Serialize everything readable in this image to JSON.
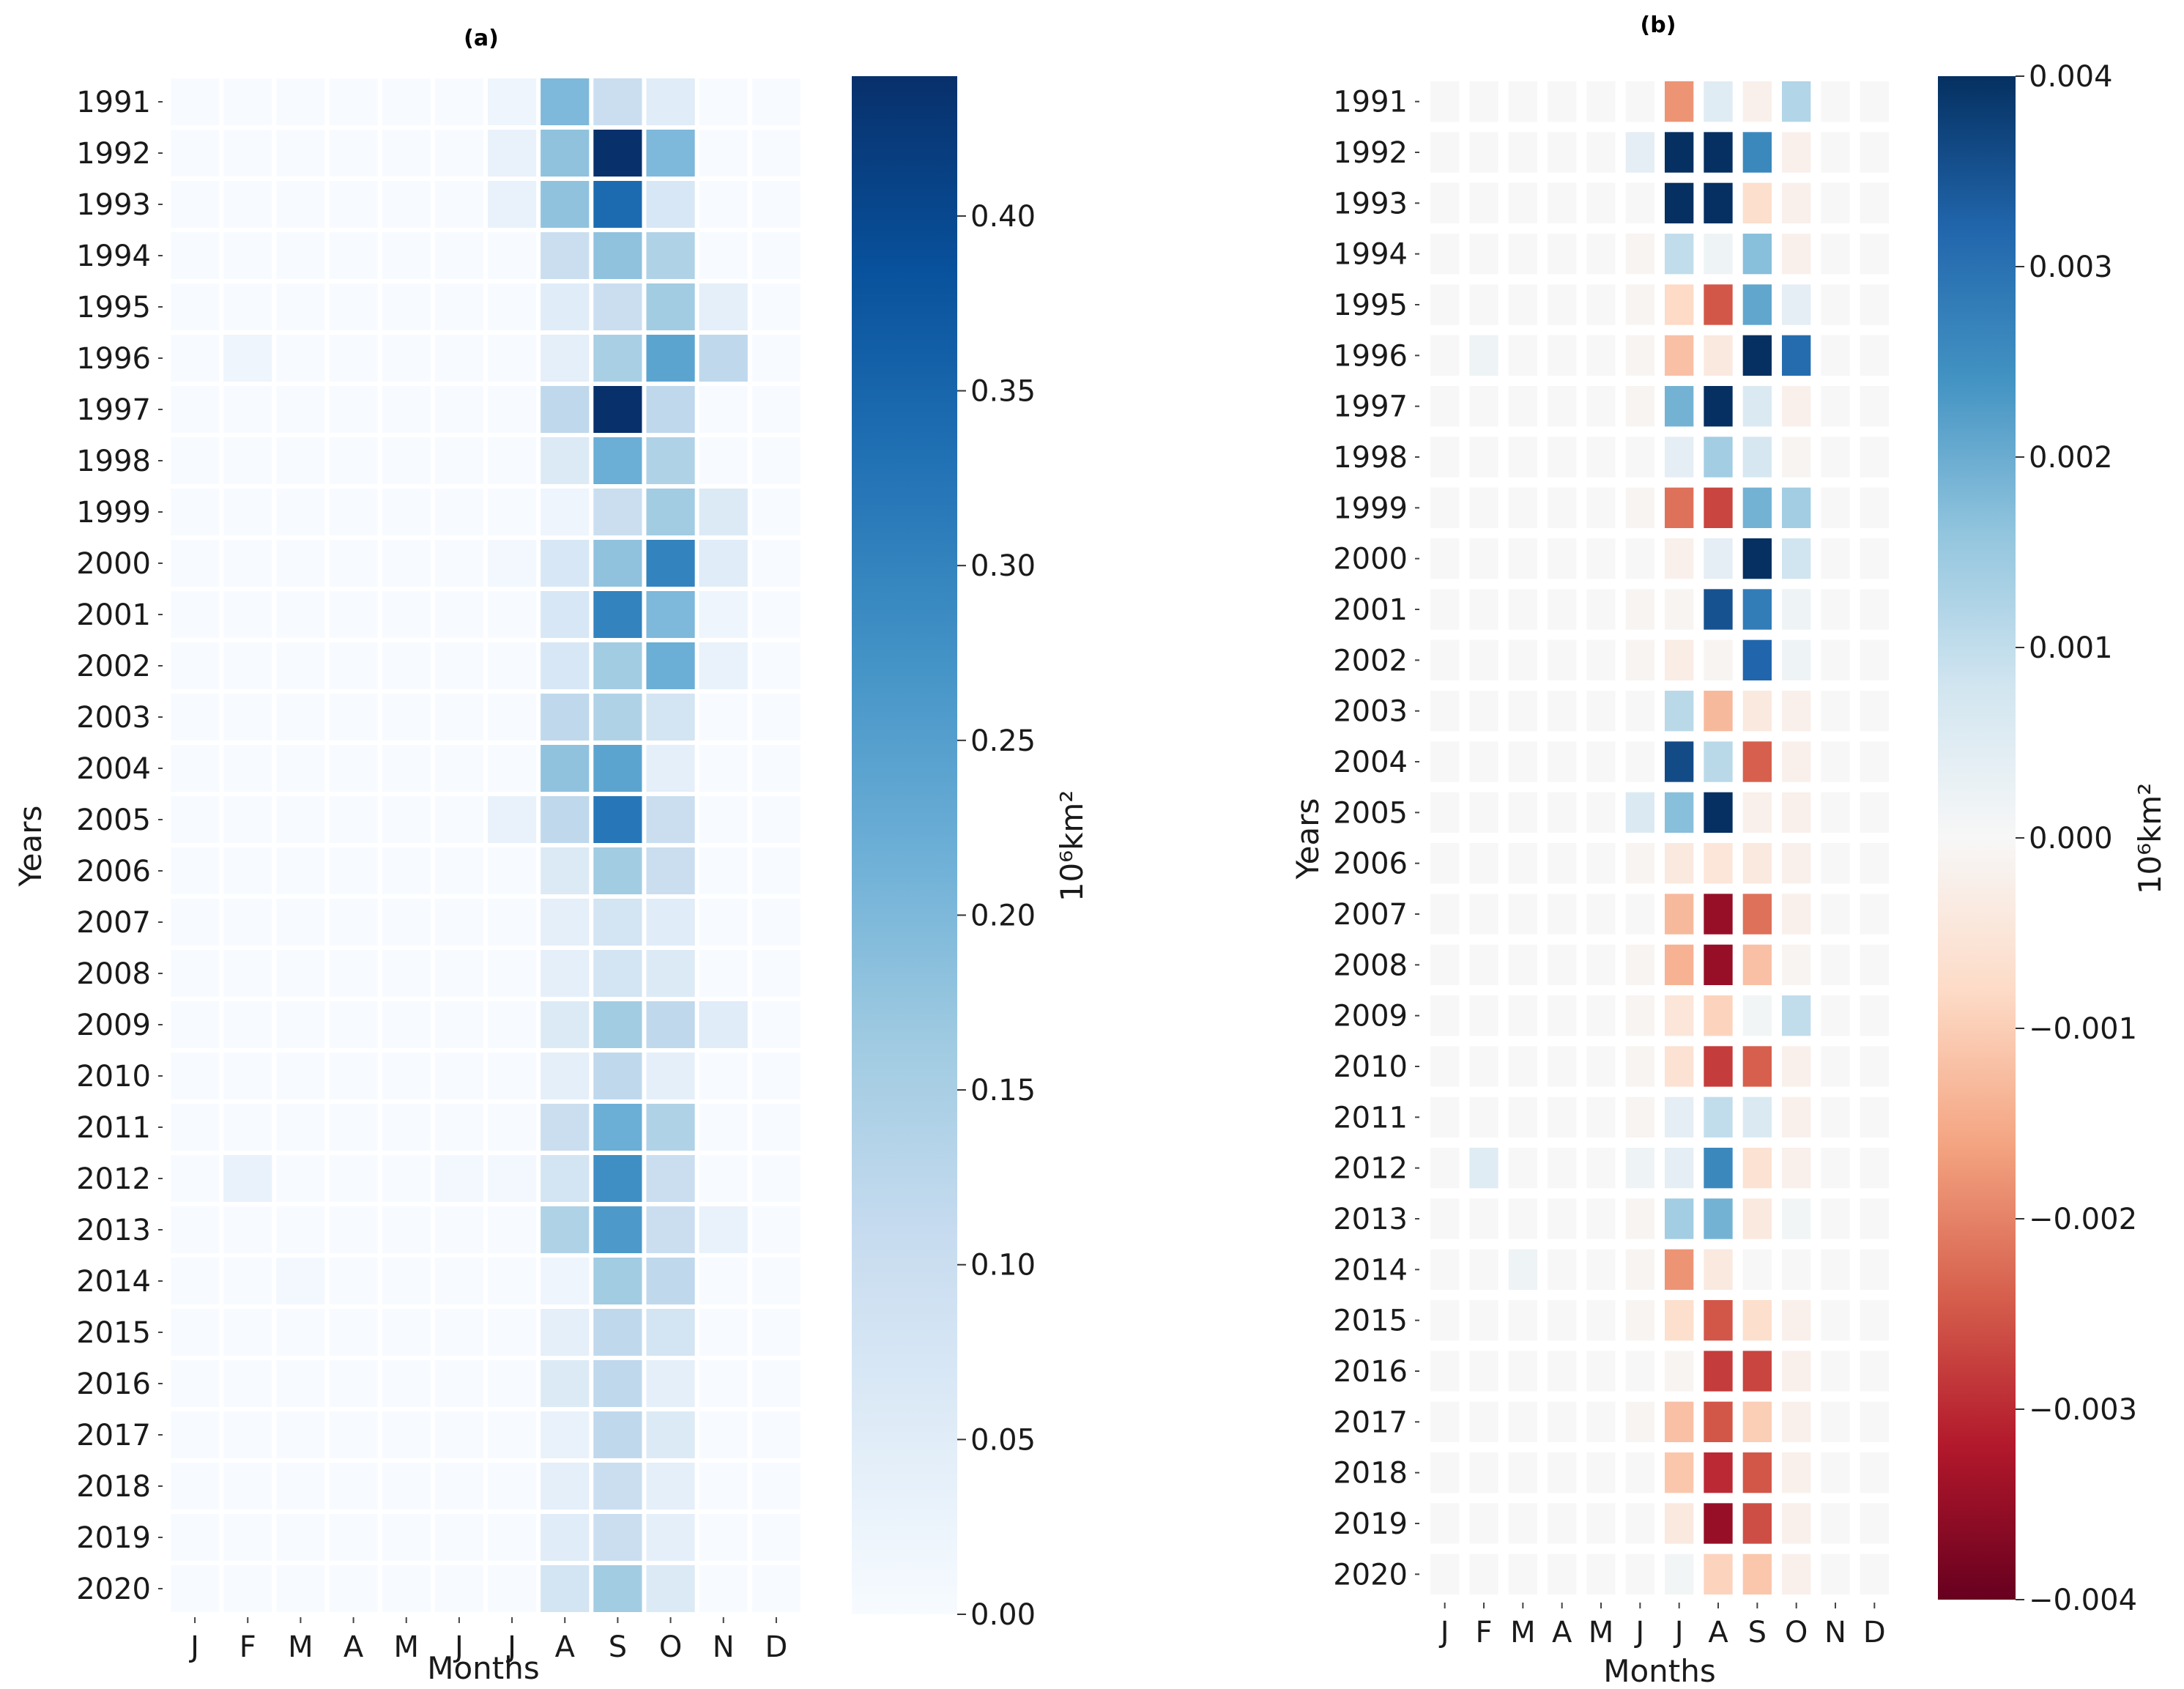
{
  "chart_data": [
    {
      "type": "heatmap",
      "title": "(a)",
      "xlabel": "Months",
      "ylabel": "Years",
      "colorbar_label": "10⁶km²",
      "colormap": "Blues",
      "vmin": 0.0,
      "vmax": 0.44,
      "colorbar_ticks": [
        "0.00",
        "0.05",
        "0.10",
        "0.15",
        "0.20",
        "0.25",
        "0.30",
        "0.35",
        "0.40"
      ],
      "colorbar_tick_values": [
        0.0,
        0.05,
        0.1,
        0.15,
        0.2,
        0.25,
        0.3,
        0.35,
        0.4
      ],
      "months": [
        "J",
        "F",
        "M",
        "A",
        "M",
        "J",
        "J",
        "A",
        "S",
        "O",
        "N",
        "D"
      ],
      "years": [
        "1991",
        "1992",
        "1993",
        "1994",
        "1995",
        "1996",
        "1997",
        "1998",
        "1999",
        "2000",
        "2001",
        "2002",
        "2003",
        "2004",
        "2005",
        "2006",
        "2007",
        "2008",
        "2009",
        "2010",
        "2011",
        "2012",
        "2013",
        "2014",
        "2015",
        "2016",
        "2017",
        "2018",
        "2019",
        "2020"
      ],
      "values": [
        [
          0,
          0,
          0,
          0,
          0,
          0,
          0.02,
          0.2,
          0.1,
          0.05,
          0,
          0
        ],
        [
          0,
          0,
          0,
          0,
          0,
          0,
          0.03,
          0.18,
          0.44,
          0.2,
          0,
          0
        ],
        [
          0,
          0,
          0,
          0,
          0,
          0,
          0.03,
          0.18,
          0.34,
          0.07,
          0,
          0
        ],
        [
          0,
          0,
          0,
          0,
          0,
          0,
          0,
          0.1,
          0.18,
          0.14,
          0,
          0
        ],
        [
          0,
          0,
          0,
          0,
          0,
          0,
          0,
          0.05,
          0.1,
          0.16,
          0.04,
          0
        ],
        [
          0,
          0.02,
          0,
          0,
          0,
          0,
          0,
          0.04,
          0.15,
          0.24,
          0.12,
          0
        ],
        [
          0,
          0,
          0,
          0,
          0,
          0,
          0,
          0.12,
          0.44,
          0.12,
          0,
          0
        ],
        [
          0,
          0,
          0,
          0,
          0,
          0,
          0,
          0.06,
          0.22,
          0.14,
          0,
          0
        ],
        [
          0,
          0,
          0,
          0,
          0,
          0,
          0,
          0.02,
          0.1,
          0.16,
          0.06,
          0
        ],
        [
          0,
          0,
          0,
          0,
          0,
          0,
          0.01,
          0.07,
          0.18,
          0.3,
          0.05,
          0
        ],
        [
          0,
          0,
          0,
          0,
          0,
          0,
          0,
          0.07,
          0.3,
          0.2,
          0.02,
          0
        ],
        [
          0,
          0,
          0,
          0,
          0,
          0,
          0,
          0.07,
          0.16,
          0.22,
          0.03,
          0
        ],
        [
          0,
          0,
          0,
          0,
          0,
          0,
          0,
          0.12,
          0.14,
          0.08,
          0,
          0
        ],
        [
          0,
          0,
          0,
          0,
          0,
          0,
          0,
          0.18,
          0.24,
          0.04,
          0,
          0
        ],
        [
          0,
          0,
          0,
          0,
          0,
          0,
          0.03,
          0.12,
          0.32,
          0.1,
          0,
          0
        ],
        [
          0,
          0,
          0,
          0,
          0,
          0,
          0,
          0.06,
          0.16,
          0.1,
          0,
          0
        ],
        [
          0,
          0,
          0,
          0,
          0,
          0,
          0,
          0.04,
          0.08,
          0.05,
          0,
          0
        ],
        [
          0,
          0,
          0,
          0,
          0,
          0,
          0,
          0.04,
          0.08,
          0.06,
          0,
          0
        ],
        [
          0,
          0,
          0,
          0,
          0,
          0,
          0,
          0.06,
          0.16,
          0.12,
          0.05,
          0
        ],
        [
          0,
          0,
          0,
          0,
          0,
          0,
          0,
          0.04,
          0.12,
          0.04,
          0,
          0
        ],
        [
          0,
          0,
          0,
          0,
          0,
          0,
          0,
          0.1,
          0.22,
          0.14,
          0,
          0
        ],
        [
          0,
          0.03,
          0,
          0,
          0,
          0.01,
          0.01,
          0.08,
          0.28,
          0.1,
          0,
          0
        ],
        [
          0,
          0,
          0,
          0,
          0,
          0,
          0,
          0.14,
          0.26,
          0.1,
          0.03,
          0
        ],
        [
          0,
          0,
          0.01,
          0,
          0,
          0,
          0,
          0.02,
          0.16,
          0.12,
          0,
          0
        ],
        [
          0,
          0,
          0,
          0,
          0,
          0,
          0,
          0.04,
          0.12,
          0.08,
          0,
          0
        ],
        [
          0,
          0,
          0,
          0,
          0,
          0,
          0,
          0.06,
          0.12,
          0.04,
          0,
          0
        ],
        [
          0,
          0,
          0,
          0,
          0,
          0,
          0,
          0.03,
          0.12,
          0.06,
          0,
          0
        ],
        [
          0,
          0,
          0,
          0,
          0,
          0,
          0,
          0.04,
          0.1,
          0.04,
          0,
          0
        ],
        [
          0,
          0,
          0,
          0,
          0,
          0,
          0,
          0.05,
          0.1,
          0.04,
          0,
          0
        ],
        [
          0,
          0,
          0,
          0,
          0,
          0,
          0,
          0.08,
          0.16,
          0.06,
          0,
          0
        ]
      ]
    },
    {
      "type": "heatmap",
      "title": "(b)",
      "xlabel": "Months",
      "ylabel": "Years",
      "colorbar_label": "10⁶km²",
      "colormap": "RdBu",
      "vmin": -0.004,
      "vmax": 0.004,
      "colorbar_ticks": [
        "0.004",
        "0.003",
        "0.002",
        "0.001",
        "0.000",
        "−0.001",
        "−0.002",
        "−0.003",
        "−0.004"
      ],
      "colorbar_tick_values": [
        0.004,
        0.003,
        0.002,
        0.001,
        0.0,
        -0.001,
        -0.002,
        -0.003,
        -0.004
      ],
      "months": [
        "J",
        "F",
        "M",
        "A",
        "M",
        "J",
        "J",
        "A",
        "S",
        "O",
        "N",
        "D"
      ],
      "years": [
        "1991",
        "1992",
        "1993",
        "1994",
        "1995",
        "1996",
        "1997",
        "1998",
        "1999",
        "2000",
        "2001",
        "2002",
        "2003",
        "2004",
        "2005",
        "2006",
        "2007",
        "2008",
        "2009",
        "2010",
        "2011",
        "2012",
        "2013",
        "2014",
        "2015",
        "2016",
        "2017",
        "2018",
        "2019",
        "2020"
      ],
      "values": [
        [
          0,
          0,
          0,
          0,
          0,
          0,
          -0.0018,
          0.0005,
          -0.0002,
          0.0012,
          0,
          0
        ],
        [
          0,
          0,
          0,
          0,
          0,
          0.0004,
          0.004,
          0.004,
          0.0026,
          -0.0002,
          0,
          0
        ],
        [
          0,
          0,
          0,
          0,
          0,
          0,
          0.004,
          0.004,
          -0.0007,
          -0.0002,
          0,
          0
        ],
        [
          0,
          0,
          0,
          0,
          0,
          -0.0001,
          0.001,
          0.0002,
          0.0017,
          -0.0002,
          0,
          0
        ],
        [
          0,
          0,
          0,
          0,
          0,
          -0.0001,
          -0.0008,
          -0.0025,
          0.0021,
          0.0004,
          0,
          0
        ],
        [
          0,
          0.0002,
          0,
          0,
          0,
          -0.0001,
          -0.0012,
          -0.0004,
          0.004,
          0.0031,
          0,
          0
        ],
        [
          0,
          0,
          0,
          0,
          0,
          -0.0001,
          0.0019,
          0.004,
          0.0006,
          -0.0002,
          0,
          0
        ],
        [
          0,
          0,
          0,
          0,
          0,
          0,
          0.0004,
          0.0014,
          0.0007,
          -0.0001,
          0,
          0
        ],
        [
          0,
          0,
          0,
          0,
          0,
          -0.0001,
          -0.0022,
          -0.0027,
          0.0019,
          0.0014,
          0,
          0
        ],
        [
          0,
          0,
          0,
          0,
          0,
          0,
          -0.0002,
          0.0004,
          0.004,
          0.0008,
          0,
          0
        ],
        [
          0,
          0,
          0,
          0,
          0,
          -0.0001,
          -0.0001,
          0.0035,
          0.0028,
          0.0002,
          0,
          0
        ],
        [
          0,
          0,
          0,
          0,
          0,
          -0.0001,
          -0.0003,
          -0.0001,
          0.0032,
          0.0002,
          0,
          0
        ],
        [
          0,
          0,
          0,
          0,
          0,
          0,
          0.0011,
          -0.0013,
          -0.0004,
          -0.0002,
          0,
          0
        ],
        [
          0,
          0,
          0,
          0,
          0,
          0,
          0.0036,
          0.0011,
          -0.0024,
          -0.0002,
          0,
          0
        ],
        [
          0,
          0,
          0,
          0,
          0,
          0.0006,
          0.0017,
          0.004,
          -0.0002,
          -0.0002,
          0,
          0
        ],
        [
          0,
          0,
          0,
          0,
          0,
          -0.0001,
          -0.0004,
          -0.0005,
          -0.0004,
          -0.0002,
          0,
          0
        ],
        [
          0,
          0,
          0,
          0,
          0,
          0,
          -0.0013,
          -0.0035,
          -0.0022,
          -0.0002,
          0,
          0
        ],
        [
          0,
          0,
          0,
          0,
          0,
          -0.0001,
          -0.0014,
          -0.0035,
          -0.0012,
          -0.0001,
          0,
          0
        ],
        [
          0,
          0,
          0,
          0,
          0,
          -0.0001,
          -0.0005,
          -0.0009,
          0.0001,
          0.001,
          0,
          0
        ],
        [
          0,
          0,
          0,
          0,
          0,
          -0.0001,
          -0.0006,
          -0.0028,
          -0.0024,
          -0.0002,
          0,
          0
        ],
        [
          0,
          0,
          0,
          0,
          0,
          -0.0001,
          0.0004,
          0.001,
          0.0006,
          -0.0002,
          0,
          0
        ],
        [
          0,
          0.0005,
          0,
          0,
          0,
          0.0002,
          0.0004,
          0.0026,
          -0.0006,
          -0.0002,
          0,
          0
        ],
        [
          0,
          0,
          0,
          0,
          0,
          -0.0001,
          0.0014,
          0.0019,
          -0.0004,
          0.0001,
          0,
          0
        ],
        [
          0,
          0,
          0.0002,
          0,
          0,
          -0.0001,
          -0.0018,
          -0.0004,
          0,
          0,
          0,
          0
        ],
        [
          0,
          0,
          0,
          0,
          0,
          -0.0001,
          -0.0007,
          -0.0025,
          -0.0007,
          -0.0002,
          0,
          0
        ],
        [
          0,
          0,
          0,
          0,
          0,
          0,
          -0.0001,
          -0.0028,
          -0.0027,
          -0.0002,
          0,
          0
        ],
        [
          0,
          0,
          0,
          0,
          0,
          -0.0001,
          -0.0012,
          -0.0025,
          -0.001,
          -0.0002,
          0,
          0
        ],
        [
          0,
          0,
          0,
          0,
          0,
          0,
          -0.0011,
          -0.003,
          -0.0025,
          -0.0002,
          0,
          0
        ],
        [
          0,
          0,
          0,
          0,
          0,
          0,
          -0.0004,
          -0.0035,
          -0.0026,
          -0.0002,
          0,
          0
        ],
        [
          0,
          0,
          0,
          0,
          0,
          0,
          0.0001,
          -0.0009,
          -0.0011,
          -0.0002,
          0,
          0
        ]
      ]
    }
  ]
}
